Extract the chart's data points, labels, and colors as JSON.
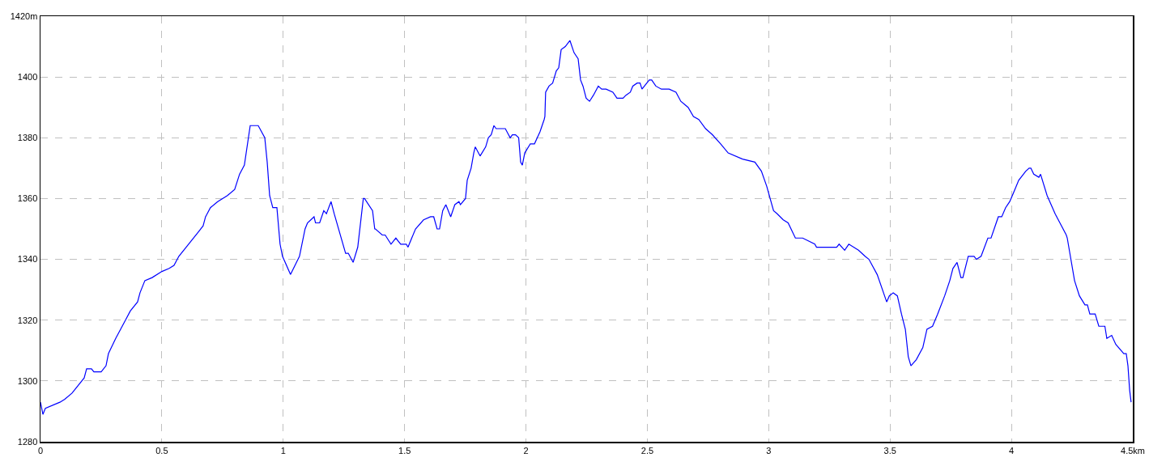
{
  "chart_data": {
    "type": "line",
    "grid": true,
    "line_style": "solid",
    "marker": "none",
    "xlim": [
      0,
      4.5
    ],
    "xticks": [
      0,
      0.5,
      1,
      1.5,
      2,
      2.5,
      3,
      3.5,
      4,
      {
        "value": 4.5,
        "label": "4.5km"
      }
    ],
    "ylim": [
      1280,
      1420
    ],
    "yticks": [
      1280,
      1300,
      1320,
      1340,
      1360,
      1380,
      1400,
      {
        "value": 1420,
        "label": "1420m"
      }
    ],
    "series": [
      {
        "color": "#0000ff",
        "x": [
          0,
          0.01,
          0.02,
          0.08,
          0.1,
          0.13,
          0.18,
          0.19,
          0.21,
          0.22,
          0.25,
          0.27,
          0.28,
          0.31,
          0.35,
          0.37,
          0.4,
          0.41,
          0.43,
          0.46,
          0.5,
          0.53,
          0.55,
          0.57,
          0.6,
          0.65,
          0.67,
          0.68,
          0.7,
          0.73,
          0.77,
          0.8,
          0.82,
          0.84,
          0.864,
          0.897,
          0.924,
          0.934,
          0.944,
          0.957,
          0.974,
          0.987,
          0.997,
          1.03,
          1.067,
          1.09,
          1.1,
          1.127,
          1.133,
          1.15,
          1.167,
          1.178,
          1.197,
          1.21,
          1.257,
          1.268,
          1.288,
          1.307,
          1.33,
          1.335,
          1.368,
          1.377,
          1.38,
          1.408,
          1.42,
          1.444,
          1.464,
          1.484,
          1.507,
          1.514,
          1.545,
          1.578,
          1.607,
          1.62,
          1.634,
          1.644,
          1.657,
          1.67,
          1.69,
          1.707,
          1.724,
          1.73,
          1.751,
          1.758,
          1.774,
          1.785,
          1.791,
          1.811,
          1.834,
          1.845,
          1.857,
          1.868,
          1.877,
          1.915,
          1.935,
          1.944,
          1.957,
          1.97,
          1.978,
          1.985,
          1.995,
          2.018,
          2.035,
          2.058,
          2.075,
          2.078,
          2.081,
          2.095,
          2.11,
          2.125,
          2.135,
          2.145,
          2.162,
          2.181,
          2.198,
          2.215,
          2.225,
          2.235,
          2.248,
          2.262,
          2.278,
          2.298,
          2.312,
          2.33,
          2.358,
          2.375,
          2.4,
          2.412,
          2.43,
          2.44,
          2.458,
          2.47,
          2.478,
          2.508,
          2.518,
          2.535,
          2.558,
          2.59,
          2.618,
          2.638,
          2.668,
          2.69,
          2.712,
          2.74,
          2.768,
          2.802,
          2.833,
          2.892,
          2.943,
          2.97,
          2.992,
          3.02,
          3.035,
          3.06,
          3.08,
          3.11,
          3.14,
          3.19,
          3.197,
          3.28,
          3.29,
          3.313,
          3.33,
          3.37,
          3.397,
          3.413,
          3.447,
          3.486,
          3.497,
          3.513,
          3.53,
          3.547,
          3.563,
          3.575,
          3.586,
          3.608,
          3.635,
          3.652,
          3.675,
          3.696,
          3.725,
          3.746,
          3.759,
          3.776,
          3.792,
          3.8,
          3.822,
          3.846,
          3.856,
          3.875,
          3.903,
          3.916,
          3.946,
          3.96,
          3.976,
          3.993,
          4.009,
          4.03,
          4.059,
          4.073,
          4.08,
          4.092,
          4.113,
          4.12,
          4.147,
          4.18,
          4.226,
          4.23,
          4.26,
          4.28,
          4.303,
          4.313,
          4.323,
          4.345,
          4.36,
          4.385,
          4.393,
          4.413,
          4.43,
          4.463,
          4.473,
          4.48,
          4.487,
          4.493
        ],
        "values": [
          1293,
          1289,
          1291,
          1293,
          1294,
          1296,
          1301,
          1304,
          1304,
          1303,
          1303,
          1305,
          1309,
          1314,
          1320,
          1323,
          1326,
          1329,
          1333,
          1334,
          1336,
          1337,
          1338,
          1341,
          1344,
          1349,
          1351,
          1354,
          1357,
          1359,
          1361,
          1363,
          1368,
          1371,
          1384,
          1384,
          1380,
          1372,
          1361,
          1357,
          1357,
          1345,
          1341,
          1335,
          1341,
          1350,
          1352,
          1354,
          1352,
          1352,
          1356,
          1355,
          1359,
          1355,
          1342,
          1342,
          1339,
          1344,
          1360,
          1360,
          1356,
          1350,
          1350,
          1348,
          1348,
          1345,
          1347,
          1345,
          1345,
          1344,
          1350,
          1353,
          1354,
          1354,
          1350,
          1350,
          1356,
          1358,
          1354,
          1358,
          1359,
          1358,
          1360,
          1366,
          1370,
          1375,
          1377,
          1374,
          1377,
          1380,
          1381,
          1384,
          1383,
          1383,
          1380,
          1381,
          1381,
          1380,
          1372,
          1371,
          1375,
          1378,
          1378,
          1382,
          1386,
          1387,
          1395,
          1397,
          1398,
          1402,
          1403,
          1409,
          1410,
          1412,
          1408,
          1406,
          1399,
          1397,
          1393,
          1392,
          1394,
          1397,
          1396,
          1396,
          1395,
          1393,
          1393,
          1394,
          1395,
          1397,
          1398,
          1398,
          1396,
          1399,
          1399,
          1397,
          1396,
          1396,
          1395,
          1392,
          1390,
          1387,
          1386,
          1383,
          1381,
          1378,
          1375,
          1373,
          1372,
          1369,
          1364,
          1356,
          1355,
          1353,
          1352,
          1347,
          1347,
          1345,
          1344,
          1344,
          1345,
          1343,
          1345,
          1343,
          1341,
          1340,
          1335,
          1326,
          1328,
          1329,
          1328,
          1322,
          1317,
          1308,
          1305,
          1307,
          1311,
          1317,
          1318,
          1322,
          1328,
          1333,
          1337,
          1339,
          1334,
          1334,
          1341,
          1341,
          1340,
          1341,
          1347,
          1347,
          1354,
          1354,
          1357,
          1359,
          1362,
          1366,
          1369,
          1370,
          1370,
          1368,
          1367,
          1368,
          1361,
          1355,
          1348,
          1347,
          1333,
          1328,
          1325,
          1325,
          1322,
          1322,
          1318,
          1318,
          1314,
          1315,
          1312,
          1309,
          1309,
          1305,
          1297,
          1293
        ]
      }
    ]
  }
}
